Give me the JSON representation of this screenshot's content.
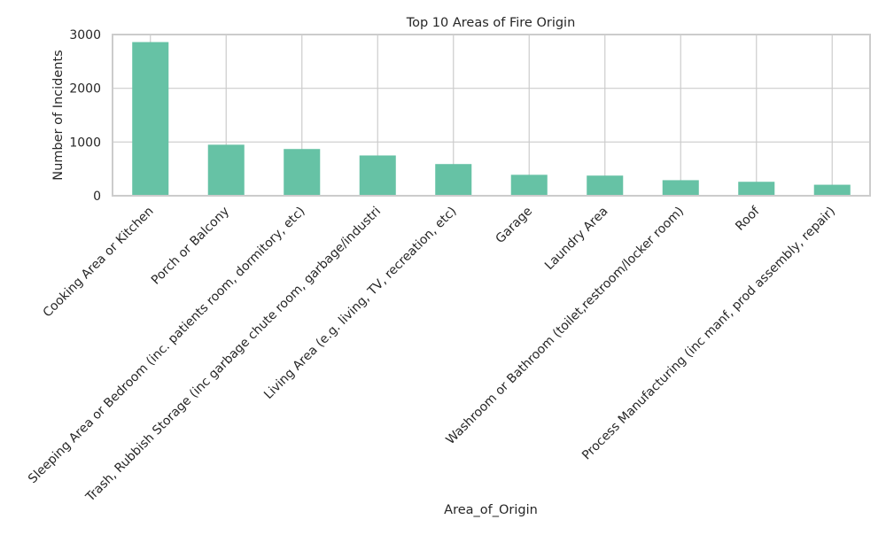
{
  "chart_data": {
    "type": "bar",
    "title": "Top 10 Areas of Fire Origin",
    "xlabel": "Area_of_Origin",
    "ylabel": "Number of Incidents",
    "categories": [
      "Cooking Area or Kitchen",
      "Porch or Balcony",
      "Sleeping Area or Bedroom (inc. patients room, dormitory, etc)",
      "Trash, Rubbish Storage (inc garbage chute room, garbage/industri",
      "Living Area (e.g. living, TV, recreation, etc)",
      "Garage",
      "Laundry Area",
      "Washroom or Bathroom (toilet,restroom/locker room)",
      "Roof",
      "Process Manufacturing (inc manf, prod assembly, repair)"
    ],
    "values": [
      2860,
      950,
      870,
      750,
      590,
      390,
      375,
      290,
      260,
      205
    ],
    "ylim": [
      0,
      3000
    ],
    "yticks": [
      0,
      1000,
      2000,
      3000
    ],
    "grid": true,
    "bar_color": "#66c2a5",
    "grid_color": "#cccccc",
    "axis_color": "#cccccc"
  }
}
